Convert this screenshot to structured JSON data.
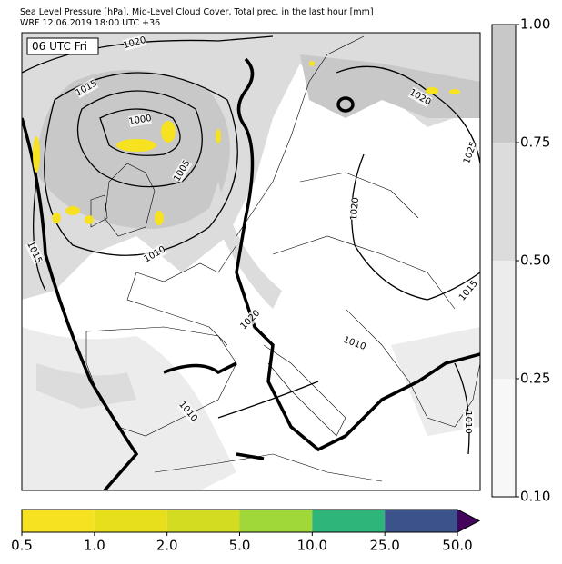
{
  "header": {
    "title": "Sea Level Pressure [hPa], Mid-Level Cloud Cover, Total prec. in the last hour [mm]",
    "subtitle": "WRF 12.06.2019 18:00 UTC +36"
  },
  "map": {
    "time_label": "06 UTC Fri",
    "isobar_labels": [
      "1020",
      "1015",
      "1000",
      "1005",
      "1010",
      "1015",
      "1020",
      "1025",
      "1020",
      "1015",
      "1020",
      "1010",
      "1010",
      "1010"
    ]
  },
  "cloud_colorbar": {
    "ticks": [
      {
        "value": 0.1,
        "label": "0.10"
      },
      {
        "value": 0.25,
        "label": "0.25"
      },
      {
        "value": 0.5,
        "label": "0.50"
      },
      {
        "value": 0.75,
        "label": "0.75"
      },
      {
        "value": 1,
        "label": "1.00"
      }
    ],
    "colors": [
      "#f7f7f7",
      "#ececec",
      "#dcdcdc",
      "#c8c8c8"
    ]
  },
  "precip_colorbar": {
    "ticks": [
      0.5,
      {
        "value": 1,
        "label": "1.0"
      },
      {
        "value": 2,
        "label": "2.0"
      },
      {
        "value": 5,
        "label": "5.0"
      },
      {
        "value": 10,
        "label": "10.0"
      },
      {
        "value": 25,
        "label": "25.0"
      },
      {
        "value": 50,
        "label": "50.0"
      }
    ],
    "colors": [
      "#f6e220",
      "#e8df1c",
      "#d3dc20",
      "#a0d83a",
      "#2eb57a",
      "#3c528a"
    ],
    "extend_color": "#45045b"
  }
}
